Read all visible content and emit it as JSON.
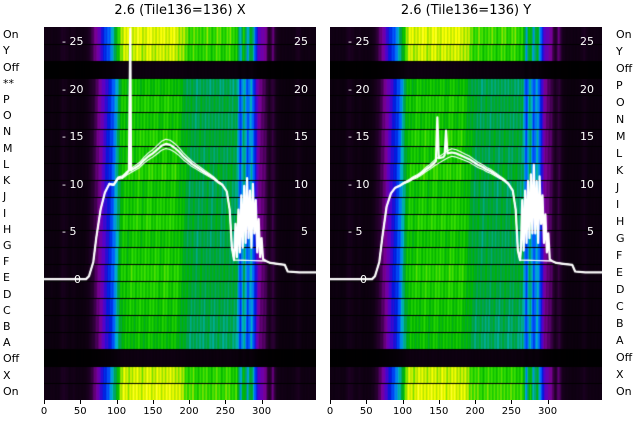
{
  "figure": {
    "panels": [
      {
        "title": "2.6 (Tile136=136) X"
      },
      {
        "title": "2.6 (Tile136=136) Y"
      }
    ],
    "left_row_labels": [
      "On",
      "Y",
      "Off",
      "**",
      "P",
      "O",
      "N",
      "M",
      "L",
      "K",
      "J",
      "I",
      "H",
      "G",
      "F",
      "E",
      "D",
      "C",
      "B",
      "A",
      "Off",
      "X",
      "On"
    ],
    "right_row_labels": [
      "On",
      "Y",
      "Off",
      "P",
      "O",
      "N",
      "M",
      "L",
      "K",
      "J",
      "I",
      "H",
      "G",
      "F",
      "E",
      "D",
      "C",
      "B",
      "A",
      "Off",
      "X",
      "On"
    ]
  },
  "chart_data": {
    "type": "heatmap",
    "subtype": "waterfall-with-line-overlay",
    "title_left": "2.6 (Tile136=136) X",
    "title_right": "2.6 (Tile136=136) Y",
    "x_range": [
      0,
      375
    ],
    "x_ticks": [
      0,
      50,
      100,
      150,
      200,
      250,
      300
    ],
    "x_tick_labels": [
      "0",
      "50",
      "100",
      "150",
      "200",
      "250",
      "300"
    ],
    "line_y_ticks": [
      25,
      20,
      15,
      10,
      5
    ],
    "left_tick_labels": [
      "- 25",
      "- 20",
      "- 15",
      "- 10",
      "- 5"
    ],
    "right_tick_labels": [
      "25",
      "20",
      "15",
      "10",
      "5"
    ],
    "zero_label": "0",
    "line_y_range_at_plot_edges": [
      -12.5,
      26.7
    ],
    "rows": [
      "On",
      "Y",
      "Off",
      "P",
      "O",
      "N",
      "M",
      "L",
      "K",
      "J",
      "I",
      "H",
      "G",
      "F",
      "E",
      "D",
      "C",
      "B",
      "A",
      "Off",
      "X",
      "On"
    ],
    "row_gains": [
      1.0,
      0.96,
      0.03,
      0.72,
      0.76,
      0.73,
      0.77,
      0.74,
      0.78,
      0.73,
      0.75,
      0.77,
      0.73,
      0.75,
      0.78,
      0.76,
      0.74,
      0.72,
      0.71,
      0.03,
      0.96,
      1.0
    ],
    "column_profile_x_step": 5,
    "column_profile": [
      0.03,
      0.028,
      0.032,
      0.028,
      0.03,
      0.055,
      0.045,
      0.03,
      0.04,
      0.028,
      0.03,
      0.032,
      0.045,
      0.085,
      0.125,
      0.165,
      0.225,
      0.285,
      0.335,
      0.42,
      0.56,
      0.74,
      0.81,
      0.78,
      0.82,
      0.8,
      0.83,
      0.79,
      0.81,
      0.83,
      0.8,
      0.82,
      0.79,
      0.83,
      0.81,
      0.8,
      0.82,
      0.78,
      0.74,
      0.7,
      0.66,
      0.68,
      0.64,
      0.67,
      0.65,
      0.68,
      0.64,
      0.66,
      0.68,
      0.64,
      0.66,
      0.67,
      0.64,
      0.65,
      0.36,
      0.63,
      0.38,
      0.55,
      0.33,
      0.18,
      0.15,
      0.13,
      0.06,
      0.12,
      0.045,
      0.032,
      0.03,
      0.028,
      0.03,
      0.032,
      0.05,
      0.03,
      0.028,
      0.03,
      0.028,
      0.03
    ],
    "colormap_stops": [
      [
        0,
        "#000000"
      ],
      [
        0.08,
        "#2a0033"
      ],
      [
        0.13,
        "#7a0096"
      ],
      [
        0.18,
        "#5a00c8"
      ],
      [
        0.24,
        "#0018dc"
      ],
      [
        0.32,
        "#0064ff"
      ],
      [
        0.4,
        "#00b4c8"
      ],
      [
        0.48,
        "#00a050"
      ],
      [
        0.56,
        "#00b400"
      ],
      [
        0.66,
        "#2fdc00"
      ],
      [
        0.75,
        "#b4e600"
      ],
      [
        0.85,
        "#ffff00"
      ],
      [
        1,
        "#ffffb4"
      ]
    ],
    "texture_amplitude": 0.06,
    "line_color": "#ffffff",
    "background": "#000000",
    "series": [
      {
        "panel": "X",
        "base": [
          [
            0,
            0.2
          ],
          [
            58,
            0.2
          ],
          [
            62,
            0.5
          ],
          [
            68,
            2.0
          ],
          [
            72,
            4.5
          ],
          [
            78,
            7.5
          ],
          [
            84,
            9.3
          ],
          [
            90,
            10.2
          ],
          [
            96,
            10.1
          ],
          [
            102,
            10.8
          ],
          [
            108,
            10.9
          ],
          [
            114,
            11.3
          ],
          [
            120,
            11.6
          ],
          [
            126,
            11.9
          ],
          [
            132,
            12.2
          ],
          [
            138,
            12.7
          ],
          [
            144,
            13.1
          ],
          [
            150,
            13.4
          ],
          [
            156,
            13.8
          ],
          [
            162,
            14.2
          ],
          [
            168,
            14.4
          ],
          [
            174,
            14.3
          ],
          [
            180,
            14.0
          ],
          [
            186,
            13.6
          ],
          [
            192,
            13.1
          ],
          [
            198,
            12.7
          ],
          [
            204,
            12.3
          ],
          [
            210,
            12.0
          ],
          [
            216,
            11.7
          ],
          [
            222,
            11.4
          ],
          [
            228,
            11.1
          ],
          [
            234,
            10.8
          ],
          [
            240,
            10.4
          ],
          [
            246,
            10.1
          ],
          [
            252,
            9.4
          ],
          [
            256,
            7.5
          ],
          [
            259,
            3.5
          ],
          [
            262,
            2.2
          ],
          [
            306,
            2.1
          ],
          [
            312,
            1.9
          ],
          [
            322,
            1.8
          ],
          [
            332,
            1.7
          ],
          [
            336,
            1.0
          ],
          [
            352,
            0.9
          ],
          [
            375,
            0.9
          ]
        ],
        "spikes": [
          [
            117,
            11.6
          ],
          [
            119,
            26.5
          ],
          [
            121,
            11.7
          ],
          [
            264,
            6.0
          ],
          [
            266,
            2.5
          ],
          [
            268,
            7.5
          ],
          [
            270,
            3.0
          ],
          [
            272,
            9.0
          ],
          [
            274,
            3.5
          ],
          [
            276,
            10.0
          ],
          [
            278,
            4.0
          ],
          [
            280,
            10.8
          ],
          [
            282,
            4.5
          ],
          [
            284,
            9.5
          ],
          [
            286,
            3.5
          ],
          [
            288,
            10.2
          ],
          [
            290,
            5.0
          ],
          [
            292,
            8.5
          ],
          [
            294,
            3.0
          ],
          [
            296,
            6.5
          ],
          [
            298,
            2.5
          ],
          [
            300,
            4.5
          ],
          [
            302,
            2.3
          ]
        ]
      },
      {
        "panel": "Y",
        "base": [
          [
            0,
            0.2
          ],
          [
            58,
            0.2
          ],
          [
            62,
            0.5
          ],
          [
            68,
            2.0
          ],
          [
            72,
            4.5
          ],
          [
            78,
            7.8
          ],
          [
            84,
            9.2
          ],
          [
            90,
            9.8
          ],
          [
            96,
            10.0
          ],
          [
            102,
            10.3
          ],
          [
            108,
            10.5
          ],
          [
            114,
            10.8
          ],
          [
            120,
            11.0
          ],
          [
            126,
            11.3
          ],
          [
            132,
            11.7
          ],
          [
            138,
            12.0
          ],
          [
            144,
            12.4
          ],
          [
            150,
            12.7
          ],
          [
            156,
            13.0
          ],
          [
            162,
            13.3
          ],
          [
            168,
            13.5
          ],
          [
            174,
            13.4
          ],
          [
            180,
            13.2
          ],
          [
            186,
            13.0
          ],
          [
            192,
            12.8
          ],
          [
            198,
            12.5
          ],
          [
            204,
            12.2
          ],
          [
            210,
            12.0
          ],
          [
            216,
            11.7
          ],
          [
            222,
            11.5
          ],
          [
            228,
            11.2
          ],
          [
            234,
            10.9
          ],
          [
            240,
            10.6
          ],
          [
            246,
            10.2
          ],
          [
            252,
            9.5
          ],
          [
            256,
            7.5
          ],
          [
            259,
            3.2
          ],
          [
            262,
            2.2
          ],
          [
            306,
            2.1
          ],
          [
            312,
            1.9
          ],
          [
            322,
            1.8
          ],
          [
            334,
            1.7
          ],
          [
            338,
            1.0
          ],
          [
            352,
            0.9
          ],
          [
            375,
            0.9
          ]
        ],
        "spikes": [
          [
            146,
            12.6
          ],
          [
            148,
            17.2
          ],
          [
            150,
            12.9
          ],
          [
            158,
            13.2
          ],
          [
            160,
            15.8
          ],
          [
            162,
            13.4
          ],
          [
            263,
            3.0
          ],
          [
            265,
            8.5
          ],
          [
            267,
            3.2
          ],
          [
            269,
            9.5
          ],
          [
            271,
            4.0
          ],
          [
            273,
            10.5
          ],
          [
            275,
            4.5
          ],
          [
            277,
            11.2
          ],
          [
            279,
            5.0
          ],
          [
            281,
            12.2
          ],
          [
            283,
            5.0
          ],
          [
            285,
            10.5
          ],
          [
            287,
            4.0
          ],
          [
            289,
            11.0
          ],
          [
            291,
            6.0
          ],
          [
            293,
            9.0
          ],
          [
            295,
            4.0
          ],
          [
            297,
            7.0
          ],
          [
            299,
            3.0
          ],
          [
            301,
            5.0
          ],
          [
            303,
            2.3
          ]
        ]
      }
    ]
  }
}
